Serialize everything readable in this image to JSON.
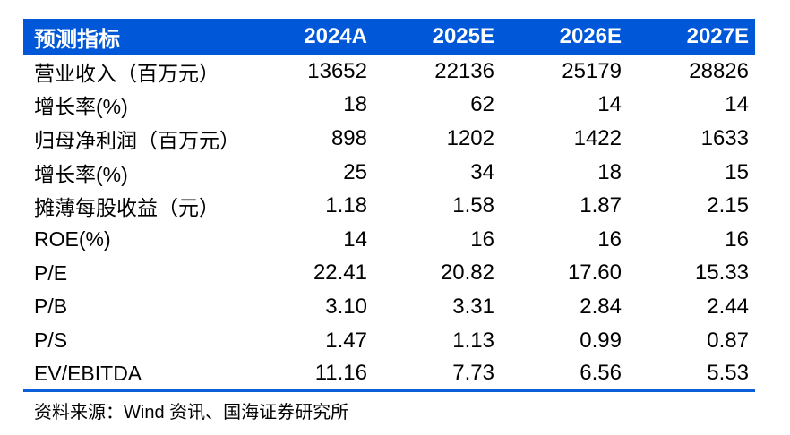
{
  "table": {
    "header": {
      "label": "预测指标",
      "columns": [
        "2024A",
        "2025E",
        "2026E",
        "2027E"
      ]
    },
    "rows": [
      {
        "label": "营业收入（百万元）",
        "values": [
          "13652",
          "22136",
          "25179",
          "28826"
        ]
      },
      {
        "label": "增长率(%)",
        "values": [
          "18",
          "62",
          "14",
          "14"
        ]
      },
      {
        "label": "归母净利润（百万元）",
        "values": [
          "898",
          "1202",
          "1422",
          "1633"
        ]
      },
      {
        "label": "增长率(%)",
        "values": [
          "25",
          "34",
          "18",
          "15"
        ]
      },
      {
        "label": "摊薄每股收益（元）",
        "values": [
          "1.18",
          "1.58",
          "1.87",
          "2.15"
        ]
      },
      {
        "label": "ROE(%)",
        "values": [
          "14",
          "16",
          "16",
          "16"
        ]
      },
      {
        "label": "P/E",
        "values": [
          "22.41",
          "20.82",
          "17.60",
          "15.33"
        ]
      },
      {
        "label": "P/B",
        "values": [
          "3.10",
          "3.31",
          "2.84",
          "2.44"
        ]
      },
      {
        "label": "P/S",
        "values": [
          "1.47",
          "1.13",
          "0.99",
          "0.87"
        ]
      },
      {
        "label": "EV/EBITDA",
        "values": [
          "11.16",
          "7.73",
          "6.56",
          "5.53"
        ]
      }
    ]
  },
  "source_note": "资料来源：Wind 资讯、国海证券研究所",
  "colors": {
    "header_background": "#0058D8",
    "header_text": "#FFFFFF",
    "body_text": "#000000",
    "bottom_rule": "#0B5FD9",
    "page_background": "#FFFFFF"
  }
}
